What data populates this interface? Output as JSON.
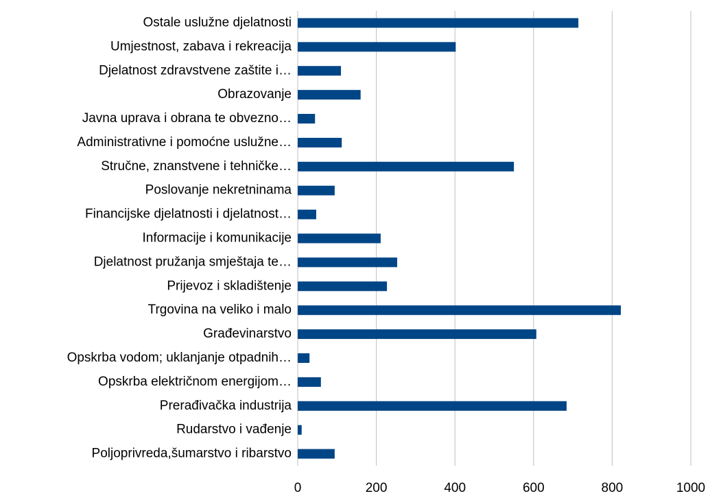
{
  "chart_data": {
    "type": "bar",
    "orientation": "horizontal",
    "categories": [
      "Ostale uslužne djelatnosti",
      "Umjestnost, zabava i rekreacija",
      "Djelatnost zdravstvene zaštite i…",
      "Obrazovanje",
      "Javna uprava i obrana te obvezno…",
      "Administrativne i pomoćne uslužne…",
      "Stručne, znanstvene i tehničke…",
      "Poslovanje nekretninama",
      "Financijske djelatnosti i djelatnost…",
      "Informacije i komunikacije",
      "Djelatnost pružanja smještaja te…",
      "Prijevoz i skladištenje",
      "Trgovina na veliko i malo",
      "Građevinarstvo",
      "Opskrba vodom; uklanjanje otpadnih…",
      "Opskrba električnom energijom…",
      "Prerađivačka industrija",
      "Rudarstvo i vađenje",
      "Poljoprivreda,šumarstvo i ribarstvo"
    ],
    "values": [
      714,
      402,
      110,
      160,
      44,
      112,
      550,
      94,
      47,
      211,
      253,
      227,
      822,
      607,
      30,
      59,
      684,
      10,
      94
    ],
    "color": "#004586",
    "xlim": [
      0,
      1000
    ],
    "xticks": [
      0,
      200,
      400,
      600,
      800,
      1000
    ],
    "grid": true
  }
}
